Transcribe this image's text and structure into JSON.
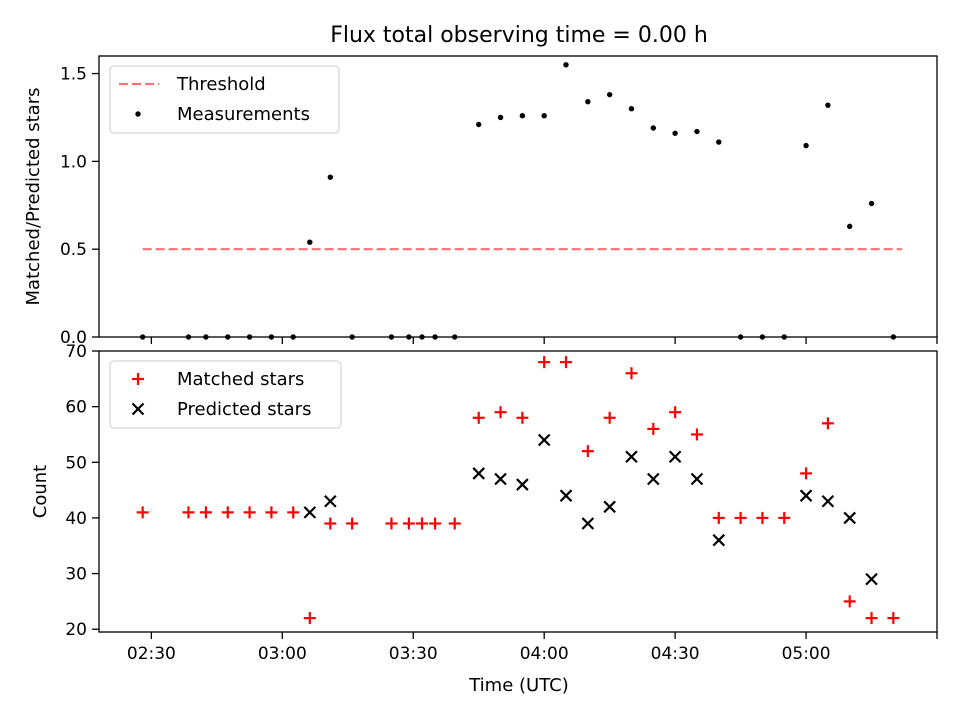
{
  "figure": {
    "title": "Flux total observing time = 0.00 h",
    "xlabel": "Time (UTC)"
  },
  "chart_data": [
    {
      "type": "scatter",
      "name": "ratio",
      "ylabel": "Matched/Predicted stars",
      "xlim": [
        -42,
        150
      ],
      "ylim": [
        0,
        1.6
      ],
      "yticks": [
        0,
        0.5,
        1.0,
        1.5
      ],
      "ytick_labels": [
        "0.0",
        "0.5",
        "1.0",
        "1.5"
      ],
      "legend": {
        "position": "top-left",
        "entries": [
          "Threshold",
          "Measurements"
        ]
      },
      "threshold": {
        "name": "Threshold",
        "value": 0.5,
        "x": [
          -32,
          142
        ],
        "color": "#ff7070"
      },
      "series": [
        {
          "name": "Measurements",
          "marker": "dot",
          "color": "#000000",
          "x": [
            -32,
            -21.5,
            -17.5,
            -12.5,
            -7.5,
            -2.5,
            2.5,
            6.3,
            11,
            16,
            25,
            29,
            32,
            35,
            39.5,
            45,
            50,
            55,
            60,
            65,
            70,
            75,
            80,
            85,
            90,
            95,
            100,
            105,
            110,
            115,
            120,
            125,
            130,
            135,
            140
          ],
          "y": [
            0,
            0,
            0,
            0,
            0,
            0,
            0,
            0.54,
            0.91,
            0,
            0,
            0,
            0,
            0,
            0,
            1.21,
            1.25,
            1.26,
            1.26,
            1.55,
            1.34,
            1.38,
            1.3,
            1.19,
            1.16,
            1.17,
            1.11,
            0,
            0,
            0,
            1.09,
            1.32,
            0.63,
            0.76,
            0
          ]
        }
      ]
    },
    {
      "type": "scatter",
      "name": "counts",
      "ylabel": "Count",
      "xlim": [
        -42,
        150
      ],
      "ylim": [
        19.5,
        70
      ],
      "yticks": [
        20,
        30,
        40,
        50,
        60,
        70
      ],
      "ytick_labels": [
        "20",
        "30",
        "40",
        "50",
        "60",
        "70"
      ],
      "xticks": [
        0,
        30,
        60,
        90,
        120,
        150,
        180
      ],
      "xtick_offset_minutes": -30,
      "xtick_labels": [
        "02:30",
        "03:00",
        "03:30",
        "04:00",
        "04:30",
        "05:00"
      ],
      "legend": {
        "position": "top-left",
        "entries": [
          "Matched stars",
          "Predicted stars"
        ]
      },
      "series": [
        {
          "name": "Matched stars",
          "marker": "plus",
          "color": "#ff0000",
          "x": [
            -32,
            -21.5,
            -17.5,
            -12.5,
            -7.5,
            -2.5,
            2.5,
            6.3,
            11,
            16,
            25,
            29,
            32,
            35,
            39.5,
            45,
            50,
            55,
            60,
            65,
            70,
            75,
            80,
            85,
            90,
            95,
            100,
            105,
            110,
            115,
            120,
            125,
            130,
            135,
            140
          ],
          "y": [
            41,
            41,
            41,
            41,
            41,
            41,
            41,
            22,
            39,
            39,
            39,
            39,
            39,
            39,
            39,
            58,
            59,
            58,
            68,
            68,
            52,
            58,
            66,
            56,
            59,
            55,
            40,
            40,
            40,
            40,
            48,
            57,
            25,
            22,
            22
          ]
        },
        {
          "name": "Predicted stars",
          "marker": "x",
          "color": "#000000",
          "x": [
            6.3,
            11,
            45,
            50,
            55,
            60,
            65,
            70,
            75,
            80,
            85,
            90,
            95,
            100,
            120,
            125,
            130,
            135
          ],
          "y": [
            41,
            43,
            48,
            47,
            46,
            54,
            44,
            39,
            42,
            51,
            47,
            51,
            47,
            36,
            44,
            43,
            40,
            29
          ]
        }
      ]
    }
  ]
}
